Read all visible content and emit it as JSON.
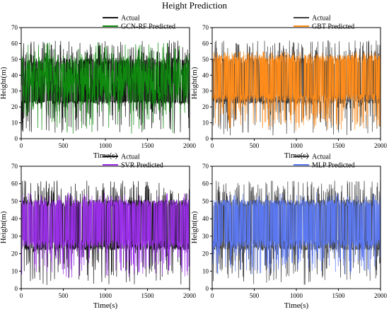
{
  "figure": {
    "title": "Height Prediction"
  },
  "colors": {
    "actual_dark": "#141414",
    "actual_gray": "#3c3c3c",
    "gcn_rf": "#0f8a0f",
    "gbt": "#ff8c1a",
    "svr": "#9a2fe8",
    "mlp": "#5b78f0"
  },
  "chart_data": [
    {
      "type": "line",
      "title": "",
      "xlabel": "Time(s)",
      "ylabel": "Height(m)",
      "xlim": [
        0,
        2000
      ],
      "ylim": [
        0,
        70
      ],
      "xticks": [
        0,
        500,
        1000,
        1500,
        2000
      ],
      "yticks": [
        0,
        10,
        20,
        30,
        40,
        50,
        60,
        70
      ],
      "grid": false,
      "legend": "top-left",
      "series": [
        {
          "name": "Actual",
          "color": "#141414",
          "x_range": [
            0,
            2000
          ],
          "band": [
            22,
            52
          ],
          "extremes": [
            2,
            62
          ],
          "style": "actual"
        },
        {
          "name": "GCN-RF Predicted",
          "color": "#0f8a0f",
          "x_range": [
            0,
            2000
          ],
          "band": [
            22,
            52
          ],
          "extremes": [
            3,
            61
          ],
          "style": "pred_full"
        }
      ]
    },
    {
      "type": "line",
      "title": "",
      "xlabel": "Time(s)",
      "ylabel": "Height(m)",
      "xlim": [
        0,
        2000
      ],
      "ylim": [
        0,
        70
      ],
      "xticks": [
        0,
        500,
        1000,
        1500,
        2000
      ],
      "yticks": [
        0,
        10,
        20,
        30,
        40,
        50,
        60,
        70
      ],
      "grid": false,
      "legend": "top-left",
      "series": [
        {
          "name": "Actual",
          "color": "#3c3c3c",
          "x_range": [
            0,
            2000
          ],
          "band": [
            22,
            52
          ],
          "extremes": [
            2,
            62
          ],
          "style": "actual"
        },
        {
          "name": "GBT Predicted",
          "color": "#ff8c1a",
          "x_range": [
            0,
            2000
          ],
          "band": [
            24,
            54
          ],
          "extremes": [
            5,
            55
          ],
          "style": "pred_band"
        }
      ]
    },
    {
      "type": "line",
      "title": "",
      "xlabel": "Time(s)",
      "ylabel": "Height(m)",
      "xlim": [
        0,
        2000
      ],
      "ylim": [
        0,
        70
      ],
      "xticks": [
        0,
        500,
        1000,
        1500,
        2000
      ],
      "yticks": [
        0,
        10,
        20,
        30,
        40,
        50,
        60,
        70
      ],
      "grid": false,
      "legend": "top-left",
      "series": [
        {
          "name": "Actual",
          "color": "#141414",
          "x_range": [
            0,
            2000
          ],
          "band": [
            22,
            52
          ],
          "extremes": [
            2,
            62
          ],
          "style": "actual"
        },
        {
          "name": "SVR Predicted",
          "color": "#9a2fe8",
          "x_range": [
            0,
            2000
          ],
          "band": [
            24,
            52
          ],
          "extremes": [
            6,
            55
          ],
          "style": "pred_band"
        }
      ]
    },
    {
      "type": "line",
      "title": "",
      "xlabel": "Time(s)",
      "ylabel": "Height(m)",
      "xlim": [
        0,
        2000
      ],
      "ylim": [
        0,
        70
      ],
      "xticks": [
        0,
        500,
        1000,
        1500,
        2000
      ],
      "yticks": [
        0,
        10,
        20,
        30,
        40,
        50,
        60,
        70
      ],
      "grid": false,
      "legend": "top-left",
      "series": [
        {
          "name": "Actual",
          "color": "#3c3c3c",
          "x_range": [
            0,
            2000
          ],
          "band": [
            22,
            52
          ],
          "extremes": [
            2,
            62
          ],
          "style": "actual"
        },
        {
          "name": "MLP Predicted",
          "color": "#5b78f0",
          "x_range": [
            0,
            2000
          ],
          "band": [
            24,
            52
          ],
          "extremes": [
            8,
            55
          ],
          "style": "pred_band"
        }
      ]
    }
  ]
}
